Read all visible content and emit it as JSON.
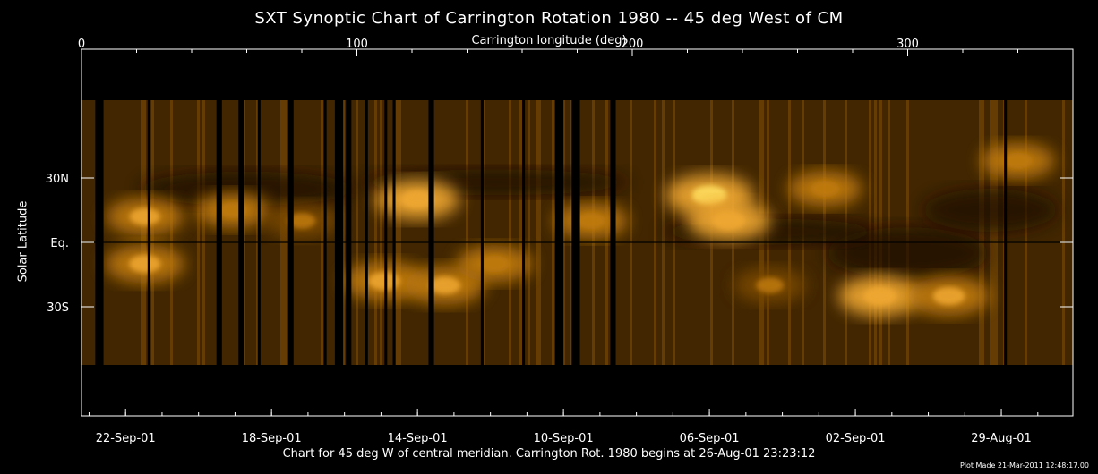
{
  "chart_data": {
    "type": "heatmap",
    "title": "SXT Synoptic Chart of Carrington Rotation 1980 -- 45 deg West of CM",
    "xlabel": "Carrington longitude (deg)",
    "ylabel": "Solar Latitude",
    "xlim": [
      0,
      360
    ],
    "x_ticks": [
      {
        "value": 0,
        "label": "0"
      },
      {
        "value": 100,
        "label": "100"
      },
      {
        "value": 200,
        "label": "200"
      },
      {
        "value": 300,
        "label": "300"
      }
    ],
    "y_ticks": [
      {
        "value": 30,
        "label": "30N"
      },
      {
        "value": 0,
        "label": "Eq."
      },
      {
        "value": -30,
        "label": "30S"
      }
    ],
    "date_ticks": [
      {
        "longitude": 16,
        "label": "22-Sep-01"
      },
      {
        "longitude": 69,
        "label": "18-Sep-01"
      },
      {
        "longitude": 122,
        "label": "14-Sep-01"
      },
      {
        "longitude": 175,
        "label": "10-Sep-01"
      },
      {
        "longitude": 228,
        "label": "06-Sep-01"
      },
      {
        "longitude": 281,
        "label": "02-Sep-01"
      },
      {
        "longitude": 334,
        "label": "29-Aug-01"
      }
    ],
    "colormap": [
      "#000000",
      "#3a2200",
      "#7a4a05",
      "#c07a10",
      "#f0a830",
      "#ffe060"
    ],
    "bright_regions": [
      {
        "lon": 23,
        "lat": 12,
        "intensity": 0.7
      },
      {
        "lon": 23,
        "lat": -10,
        "intensity": 0.75
      },
      {
        "lon": 55,
        "lat": 15,
        "intensity": 0.6
      },
      {
        "lon": 80,
        "lat": 10,
        "intensity": 0.55
      },
      {
        "lon": 110,
        "lat": -18,
        "intensity": 0.8
      },
      {
        "lon": 122,
        "lat": 20,
        "intensity": 0.85
      },
      {
        "lon": 132,
        "lat": -20,
        "intensity": 0.75
      },
      {
        "lon": 150,
        "lat": -10,
        "intensity": 0.65
      },
      {
        "lon": 185,
        "lat": 10,
        "intensity": 0.6
      },
      {
        "lon": 228,
        "lat": 22,
        "intensity": 0.95
      },
      {
        "lon": 235,
        "lat": 10,
        "intensity": 0.85
      },
      {
        "lon": 250,
        "lat": -20,
        "intensity": 0.55
      },
      {
        "lon": 270,
        "lat": 25,
        "intensity": 0.6
      },
      {
        "lon": 290,
        "lat": -25,
        "intensity": 0.85
      },
      {
        "lon": 315,
        "lat": -25,
        "intensity": 0.8
      },
      {
        "lon": 340,
        "lat": 38,
        "intensity": 0.6
      }
    ],
    "data_gaps_lon": [
      [
        5,
        8
      ],
      [
        24,
        25
      ],
      [
        49,
        51
      ],
      [
        57,
        59
      ],
      [
        64,
        65
      ],
      [
        75,
        77
      ],
      [
        88,
        89
      ],
      [
        92,
        95
      ],
      [
        96,
        98
      ],
      [
        103,
        104
      ],
      [
        110,
        111
      ],
      [
        113,
        114
      ],
      [
        126,
        128
      ],
      [
        145,
        146
      ],
      [
        160,
        161
      ],
      [
        172,
        175
      ],
      [
        178,
        181
      ],
      [
        192,
        194
      ],
      [
        335,
        336
      ]
    ]
  },
  "caption": "Chart for 45 deg W of central meridian.  Carrington Rot. 1980 begins at 26-Aug-01 23:23:12",
  "stamp": "Plot Made 21-Mar-2011 12:48:17.00"
}
